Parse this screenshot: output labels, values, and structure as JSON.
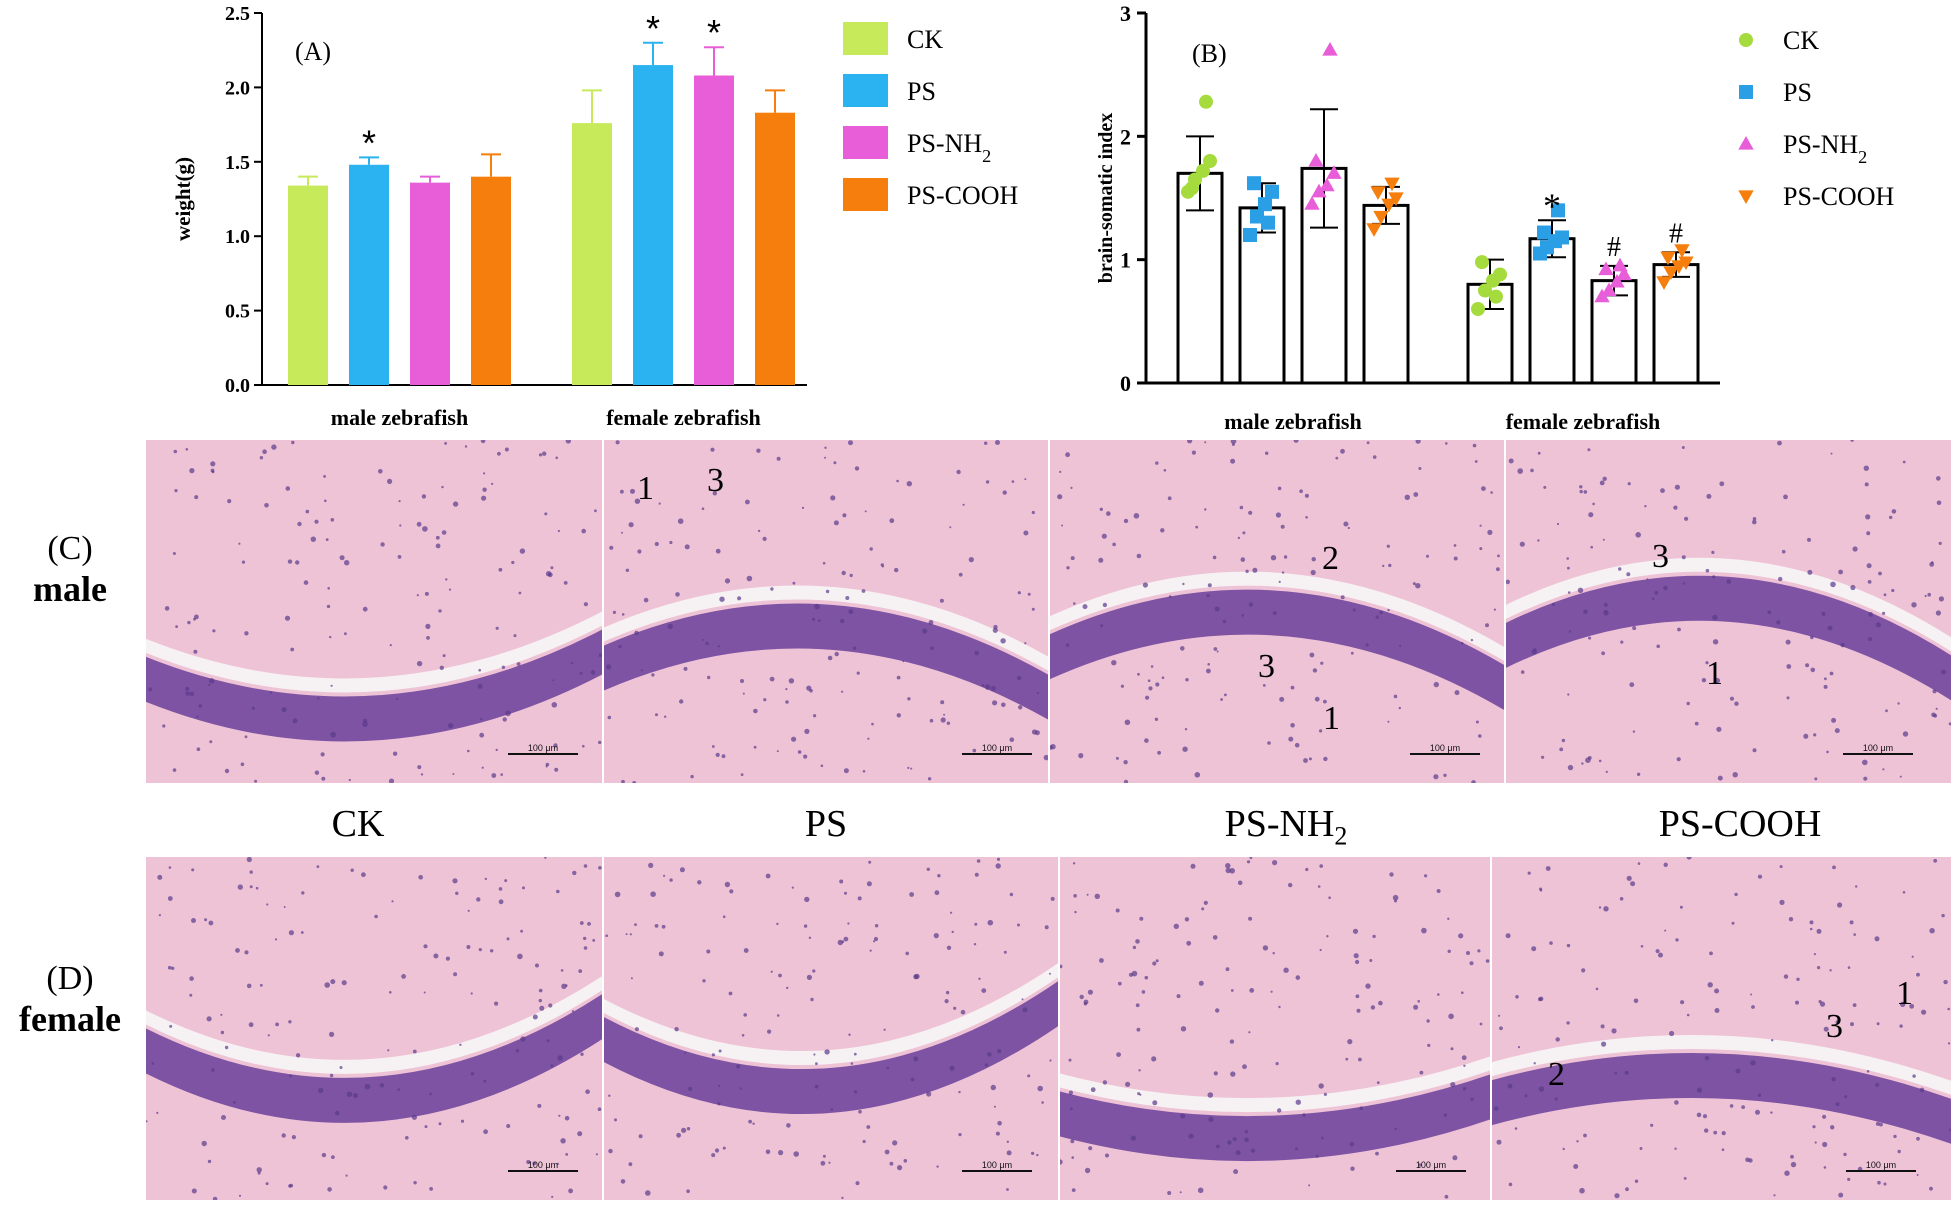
{
  "chart_data": [
    {
      "type": "bar",
      "panel_label": "(A)",
      "ylabel": "weight(g)",
      "ylim": [
        0,
        2.5
      ],
      "yticks": [
        "0.0",
        "0.5",
        "1.0",
        "1.5",
        "2.0",
        "2.5"
      ],
      "groups": [
        "male zebrafish",
        "female zebrafish"
      ],
      "series": [
        {
          "name": "CK",
          "color": "#c6ea5a",
          "values": [
            1.34,
            1.76
          ],
          "errors": [
            0.06,
            0.22
          ],
          "sig": [
            "",
            ""
          ]
        },
        {
          "name": "PS",
          "color": "#2ab3f0",
          "values": [
            1.48,
            2.15
          ],
          "errors": [
            0.05,
            0.15
          ],
          "sig": [
            "*",
            "*"
          ]
        },
        {
          "name": "PS-NH2",
          "color": "#e85ed8",
          "values": [
            1.36,
            2.08
          ],
          "errors": [
            0.04,
            0.19
          ],
          "sig": [
            "",
            "*"
          ]
        },
        {
          "name": "PS-COOH",
          "color": "#f57e0c",
          "values": [
            1.4,
            1.83
          ],
          "errors": [
            0.15,
            0.15
          ],
          "sig": [
            "",
            ""
          ]
        }
      ],
      "legend": [
        "CK",
        "PS",
        "PS-NH2",
        "PS-COOH"
      ],
      "legend_placement": "right"
    },
    {
      "type": "bar",
      "panel_label": "(B)",
      "ylabel": "brain-somatic index",
      "ylim": [
        0,
        3
      ],
      "yticks": [
        "0",
        "1",
        "2",
        "3"
      ],
      "groups": [
        "male zebrafish",
        "female zebrafish"
      ],
      "series": [
        {
          "name": "CK",
          "color": "#a5db3c",
          "marker": "circle",
          "values": [
            1.7,
            0.8
          ],
          "errors": [
            0.3,
            0.2
          ],
          "sig": [
            "",
            ""
          ],
          "points": [
            [
              1.55,
              1.65,
              1.72,
              1.8,
              1.58,
              2.28
            ],
            [
              0.6,
              0.75,
              0.83,
              0.88,
              0.98,
              0.7
            ]
          ]
        },
        {
          "name": "PS",
          "color": "#2a9fe6",
          "marker": "square",
          "values": [
            1.42,
            1.17
          ],
          "errors": [
            0.2,
            0.15
          ],
          "sig": [
            "",
            "*"
          ],
          "points": [
            [
              1.2,
              1.35,
              1.45,
              1.55,
              1.62,
              1.3
            ],
            [
              1.05,
              1.1,
              1.15,
              1.18,
              1.22,
              1.4
            ]
          ]
        },
        {
          "name": "PS-NH2",
          "color": "#e85ed8",
          "marker": "triangle-up",
          "values": [
            1.74,
            0.83
          ],
          "errors": [
            0.48,
            0.12
          ],
          "sig": [
            "",
            "#"
          ],
          "points": [
            [
              1.45,
              1.55,
              1.6,
              1.7,
              1.8,
              2.7
            ],
            [
              0.7,
              0.75,
              0.82,
              0.88,
              0.92,
              0.95
            ]
          ]
        },
        {
          "name": "PS-COOH",
          "color": "#f57e0c",
          "marker": "triangle-down",
          "values": [
            1.44,
            0.96
          ],
          "errors": [
            0.15,
            0.1
          ],
          "sig": [
            "",
            "#"
          ],
          "points": [
            [
              1.25,
              1.35,
              1.45,
              1.5,
              1.55,
              1.62
            ],
            [
              0.82,
              0.9,
              0.95,
              0.98,
              1.02,
              1.08
            ]
          ]
        }
      ],
      "legend": [
        "CK",
        "PS",
        "PS-NH2",
        "PS-COOH"
      ],
      "legend_placement": "right"
    }
  ],
  "micrographs": {
    "row_c": {
      "letter": "(C)",
      "sex": "male"
    },
    "row_d": {
      "letter": "(D)",
      "sex": "female"
    },
    "columns": [
      "CK",
      "PS",
      "PS-NH2",
      "PS-COOH"
    ],
    "scale_text": "100 μm",
    "annotations": {
      "male_ps": [
        "1",
        "3"
      ],
      "male_psnh2": [
        "2",
        "3",
        "1"
      ],
      "male_pscooh": [
        "3",
        "1"
      ],
      "female_pscooh": [
        "2",
        "3",
        "1"
      ]
    }
  }
}
